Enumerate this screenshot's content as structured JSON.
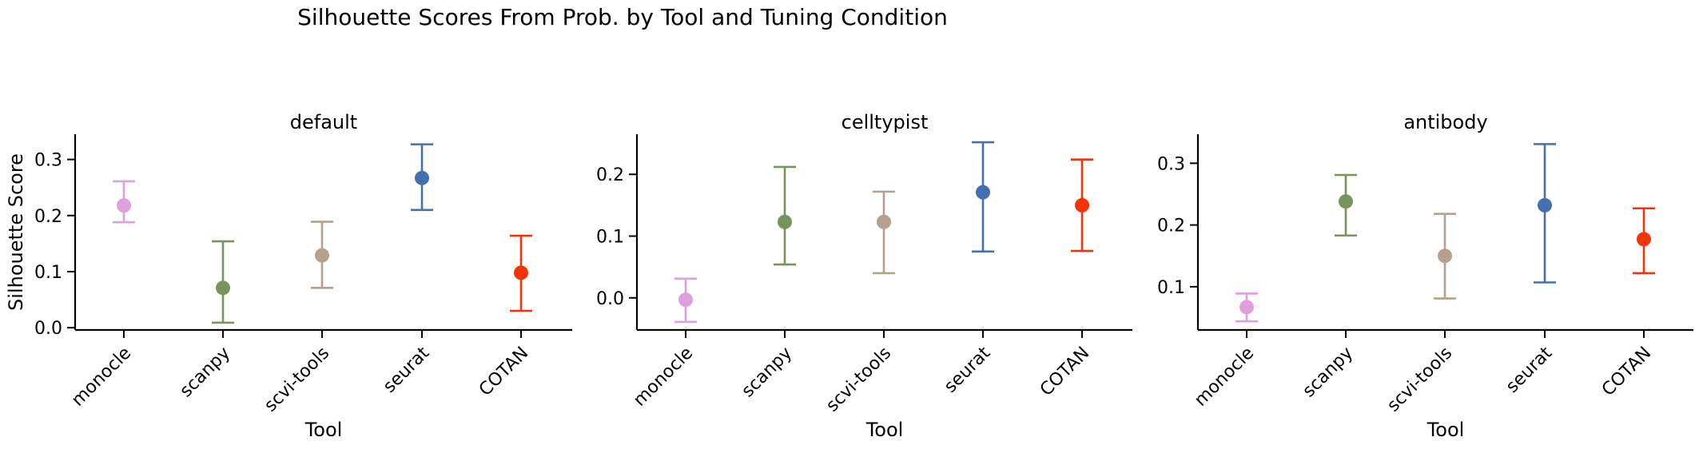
{
  "suptitle": "Silhouette Scores From Prob. by Tool and Tuning Condition",
  "colors": {
    "monocle": "#DDA0DD",
    "scanpy": "#77945C",
    "scvi-tools": "#B4A08C",
    "seurat": "#4470B0",
    "COTAN": "#F5330A"
  },
  "chart_data": [
    {
      "type": "scatter",
      "title": "default",
      "xlabel": "Tool",
      "ylabel": "Silhouette Score",
      "categories": [
        "monocle",
        "scanpy",
        "scvi-tools",
        "seurat",
        "COTAN"
      ],
      "values": [
        0.218,
        0.071,
        0.129,
        0.267,
        0.098
      ],
      "error_low": [
        0.188,
        0.009,
        0.071,
        0.21,
        0.03
      ],
      "error_high": [
        0.261,
        0.154,
        0.189,
        0.327,
        0.164
      ],
      "yticks": [
        "0.0",
        "0.1",
        "0.2",
        "0.3"
      ],
      "ytick_values": [
        0.0,
        0.1,
        0.2,
        0.3
      ],
      "ylim": [
        -0.004,
        0.345
      ]
    },
    {
      "type": "scatter",
      "title": "celltypist",
      "xlabel": "Tool",
      "ylabel": "",
      "categories": [
        "monocle",
        "scanpy",
        "scvi-tools",
        "seurat",
        "COTAN"
      ],
      "values": [
        -0.003,
        0.123,
        0.123,
        0.171,
        0.15
      ],
      "error_low": [
        -0.039,
        0.054,
        0.04,
        0.075,
        0.076
      ],
      "error_high": [
        0.031,
        0.212,
        0.172,
        0.252,
        0.224
      ],
      "yticks": [
        "0.0",
        "0.1",
        "0.2"
      ],
      "ytick_values": [
        0.0,
        0.1,
        0.2
      ],
      "ylim": [
        -0.052,
        0.265
      ]
    },
    {
      "type": "scatter",
      "title": "antibody",
      "xlabel": "Tool",
      "ylabel": "",
      "categories": [
        "monocle",
        "scanpy",
        "scvi-tools",
        "seurat",
        "COTAN"
      ],
      "values": [
        0.067,
        0.238,
        0.15,
        0.232,
        0.177
      ],
      "error_low": [
        0.044,
        0.183,
        0.081,
        0.107,
        0.122
      ],
      "error_high": [
        0.089,
        0.281,
        0.218,
        0.331,
        0.227
      ],
      "yticks": [
        "0.1",
        "0.2",
        "0.3"
      ],
      "ytick_values": [
        0.1,
        0.2,
        0.3
      ],
      "ylim": [
        0.03,
        0.347
      ]
    }
  ]
}
